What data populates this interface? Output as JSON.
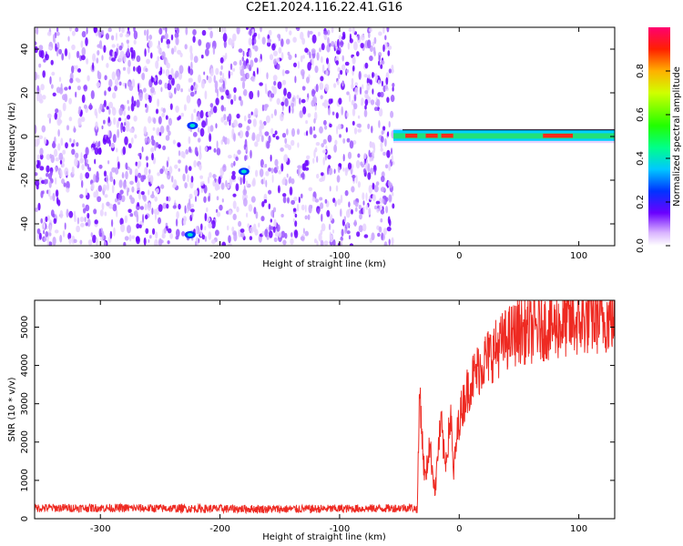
{
  "title": "C2E1.2024.116.22.41.G16",
  "colors": {
    "snr_line": "#ee2a22",
    "spec_low": "#d9b3ff",
    "spec_mid": "#6600ff",
    "frame": "#000000"
  },
  "chart_data": [
    {
      "type": "heatmap",
      "xlabel": "Height of straight line (km)",
      "ylabel": "Frequency (Hz)",
      "xlim": [
        -355,
        130
      ],
      "ylim": [
        -50,
        50
      ],
      "xticks": [
        -300,
        -200,
        -100,
        0,
        100
      ],
      "yticks": [
        -40,
        -20,
        0,
        20,
        40
      ],
      "grid": false,
      "regions": [
        {
          "x_start": -355,
          "x_end": -55,
          "f_min": -50,
          "f_max": 50,
          "description_level": "broadband noise, amplitude 0.0-0.15"
        },
        {
          "x_start": -55,
          "x_end": 130,
          "f_min": -2,
          "f_max": 3,
          "description_level": "narrow carrier line near 0 Hz, amplitude up to 1.0"
        }
      ],
      "features": [
        {
          "x": -223,
          "f": 5,
          "amplitude": 0.25
        },
        {
          "x": -180,
          "f": -16,
          "amplitude": 0.4
        },
        {
          "x": -225,
          "f": -45,
          "amplitude": 0.3
        }
      ],
      "colorbar": {
        "label": "Normalized spectral amplitude",
        "range": [
          0.0,
          1.0
        ],
        "ticks": [
          0.0,
          0.2,
          0.4,
          0.6,
          0.8
        ]
      }
    },
    {
      "type": "line",
      "xlabel": "Height of straight line (km)",
      "ylabel": "SNR (10 * v/v)",
      "xlim": [
        -355,
        130
      ],
      "ylim": [
        0,
        5700
      ],
      "xticks": [
        -300,
        -200,
        -100,
        0,
        100
      ],
      "yticks": [
        0,
        1000,
        2000,
        3000,
        4000,
        5000
      ],
      "grid": false,
      "series": [
        {
          "x": [
            -355,
            -300,
            -250,
            -200,
            -150,
            -100,
            -60,
            -40,
            -35,
            -33,
            -30,
            -28,
            -25,
            -22,
            -20,
            -18,
            -15,
            -12,
            -10,
            -7,
            -5,
            -2,
            0,
            5,
            10,
            20,
            30,
            40,
            50,
            60,
            70,
            80,
            90,
            100,
            110,
            120,
            130
          ],
          "values": [
            280,
            280,
            270,
            260,
            250,
            260,
            270,
            290,
            250,
            3500,
            1500,
            1000,
            2000,
            1200,
            700,
            1700,
            2500,
            1400,
            1800,
            2800,
            1100,
            2100,
            2600,
            3200,
            3600,
            4100,
            4400,
            4700,
            4900,
            4900,
            5000,
            5000,
            5100,
            5100,
            5200,
            5200,
            5250
          ]
        }
      ]
    }
  ]
}
